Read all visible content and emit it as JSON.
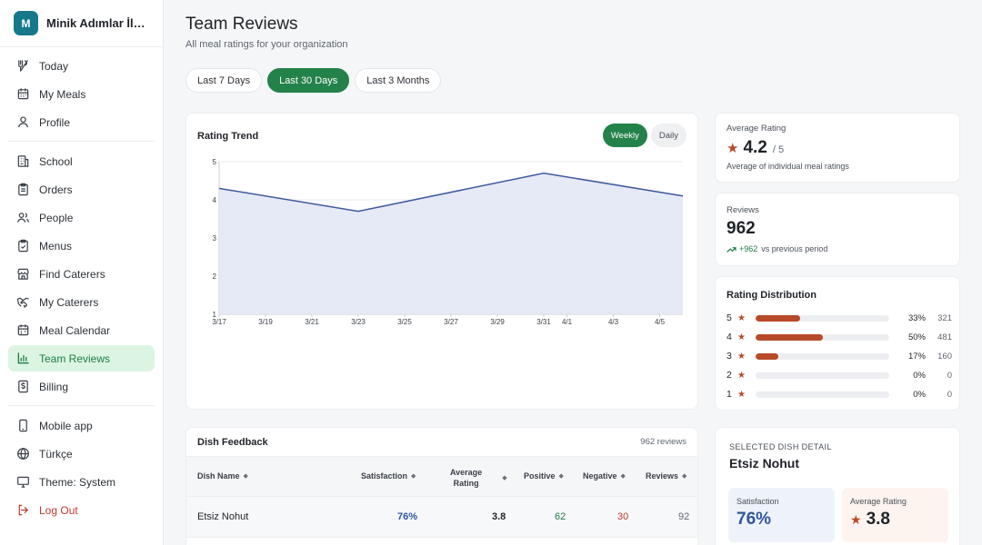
{
  "org": {
    "initial": "M",
    "name": "Minik Adımlar İlkokulu"
  },
  "nav": {
    "today": "Today",
    "my_meals": "My Meals",
    "profile": "Profile",
    "school": "School",
    "orders": "Orders",
    "people": "People",
    "menus": "Menus",
    "find_caterers": "Find Caterers",
    "my_caterers": "My Caterers",
    "meal_calendar": "Meal Calendar",
    "team_reviews": "Team Reviews",
    "billing": "Billing",
    "mobile_app": "Mobile app",
    "language": "Türkçe",
    "theme": "Theme: System",
    "logout": "Log Out"
  },
  "header": {
    "title": "Team Reviews",
    "subtitle": "All meal ratings for your organization"
  },
  "filters": {
    "last7": "Last 7 Days",
    "last30": "Last 30 Days",
    "last3m": "Last 3 Months",
    "selected": "Last 30 Days"
  },
  "trend": {
    "title": "Rating Trend",
    "weekly": "Weekly",
    "daily": "Daily",
    "selected": "Weekly"
  },
  "chart_data": {
    "type": "area",
    "title": "Rating Trend",
    "x": [
      "3/17",
      "3/23",
      "3/31",
      "4/6"
    ],
    "x_tick_labels": [
      "3/17",
      "3/19",
      "3/21",
      "3/23",
      "3/25",
      "3/27",
      "3/29",
      "3/31",
      "4/1",
      "4/3",
      "4/5"
    ],
    "y_ticks": [
      1,
      2,
      3,
      4,
      5
    ],
    "ylim": [
      1,
      5
    ],
    "series": [
      {
        "values": [
          4.3,
          3.7,
          4.7,
          4.1
        ]
      }
    ],
    "colors": {
      "line": "#3d5a9e",
      "fill": "#e3e7f5"
    },
    "grid": true
  },
  "average": {
    "label": "Average Rating",
    "value": "4.2",
    "suffix": "/ 5",
    "note": "Average of individual meal ratings"
  },
  "reviews": {
    "label": "Reviews",
    "value": "962",
    "change": "+962",
    "note": "vs previous period"
  },
  "distribution": {
    "title": "Rating Distribution",
    "rows": [
      {
        "stars": "5",
        "fraction": 0.33,
        "pct": "33%",
        "count": "321"
      },
      {
        "stars": "4",
        "fraction": 0.5,
        "pct": "50%",
        "count": "481"
      },
      {
        "stars": "3",
        "fraction": 0.17,
        "pct": "17%",
        "count": "160"
      },
      {
        "stars": "2",
        "fraction": 0.0,
        "pct": "0%",
        "count": "0"
      },
      {
        "stars": "1",
        "fraction": 0.0,
        "pct": "0%",
        "count": "0"
      }
    ]
  },
  "dish_feedback": {
    "title": "Dish Feedback",
    "count": "962 reviews",
    "columns": {
      "name": "Dish Name",
      "satisfaction": "Satisfaction",
      "avg_rating_1": "Average",
      "avg_rating_2": "Rating",
      "positive": "Positive",
      "negative": "Negative",
      "reviews": "Reviews"
    },
    "rows": [
      {
        "name": "Etsiz Nohut",
        "satisfaction": "76%",
        "avg_rating": "3.8",
        "positive": "62",
        "negative": "30",
        "reviews": "92"
      }
    ]
  },
  "selected_dish": {
    "label": "SELECTED DISH DETAIL",
    "name": "Etsiz Nohut",
    "satisfaction_label": "Satisfaction",
    "satisfaction": "76%",
    "avg_label": "Average Rating",
    "avg": "3.8"
  },
  "colors": {
    "accent": "#22824a",
    "star": "#b84a2a",
    "satisfaction": "#2f56a0",
    "positive": "#1e7d45",
    "negative": "#c0392b"
  }
}
